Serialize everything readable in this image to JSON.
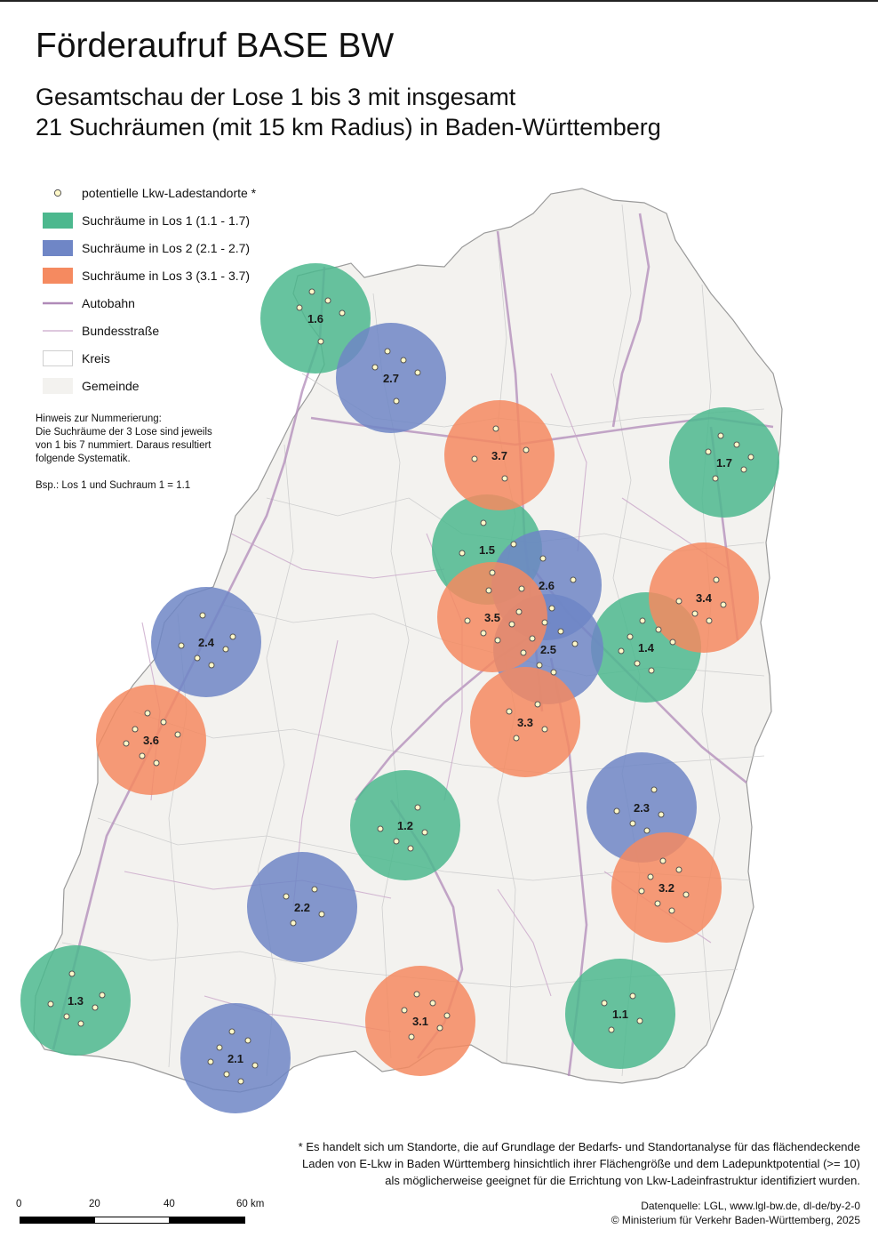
{
  "title": "Förderaufruf BASE BW",
  "subtitle_line1": "Gesamtschau der Lose 1 bis 3 mit insgesamt",
  "subtitle_line2": "21 Suchräumen (mit 15 km Radius) in Baden-Württemberg",
  "legend": {
    "points": "potentielle Lkw-Ladestandorte *",
    "los1": "Suchräume in Los 1 (1.1 - 1.7)",
    "los2": "Suchräume in Los 2 (2.1 - 2.7)",
    "los3": "Suchräume in Los 3 (3.1 - 3.7)",
    "autobahn": "Autobahn",
    "bundesstrasse": "Bundesstraße",
    "kreis": "Kreis",
    "gemeinde": "Gemeinde"
  },
  "colors": {
    "los1": "#4cb88e",
    "los2": "#6f86c6",
    "los3": "#f58a60",
    "autobahn": "#b08ab8",
    "bundesstrasse": "#c9a6c9",
    "land": "#f3f2ef",
    "border": "#c8c8c8",
    "point_fill": "#fff8c8",
    "point_stroke": "#555555"
  },
  "note": {
    "line1": "Hinweis zur Nummerierung:",
    "line2": "Die Suchräume der 3 Lose sind jeweils",
    "line3": "von 1 bis 7 nummiert. Daraus resultiert",
    "line4": "folgende Systematik.",
    "example": "Bsp.: Los 1 und Suchraum 1 = 1.1"
  },
  "search_areas": [
    {
      "id": "1.1",
      "los": 1
    },
    {
      "id": "1.2",
      "los": 1
    },
    {
      "id": "1.3",
      "los": 1
    },
    {
      "id": "1.4",
      "los": 1
    },
    {
      "id": "1.5",
      "los": 1
    },
    {
      "id": "1.6",
      "los": 1
    },
    {
      "id": "1.7",
      "los": 1
    },
    {
      "id": "2.1",
      "los": 2
    },
    {
      "id": "2.2",
      "los": 2
    },
    {
      "id": "2.3",
      "los": 2
    },
    {
      "id": "2.4",
      "los": 2
    },
    {
      "id": "2.5",
      "los": 2
    },
    {
      "id": "2.6",
      "los": 2
    },
    {
      "id": "2.7",
      "los": 2
    },
    {
      "id": "3.1",
      "los": 3
    },
    {
      "id": "3.2",
      "los": 3
    },
    {
      "id": "3.3",
      "los": 3
    },
    {
      "id": "3.4",
      "los": 3
    },
    {
      "id": "3.5",
      "los": 3
    },
    {
      "id": "3.6",
      "los": 3
    },
    {
      "id": "3.7",
      "los": 3
    }
  ],
  "footnote": {
    "line1": "* Es handelt sich um Standorte, die auf Grundlage der Bedarfs- und Standortanalyse für das flächendeckende",
    "line2": "Laden von E-Lkw in Baden Württemberg hinsichtlich ihrer Flächengröße und dem Ladepunktpotential (>= 10)",
    "line3": "als möglicherweise geeignet für die Errichtung von Lkw-Ladeinfrastruktur identifiziert wurden."
  },
  "scalebar": {
    "ticks": [
      "0",
      "20",
      "40",
      "60 km"
    ]
  },
  "source": {
    "line1": "Datenquelle: LGL, www.lgl-bw.de, dl-de/by-2-0",
    "line2": "© Ministerium für Verkehr Baden-Württemberg, 2025"
  }
}
